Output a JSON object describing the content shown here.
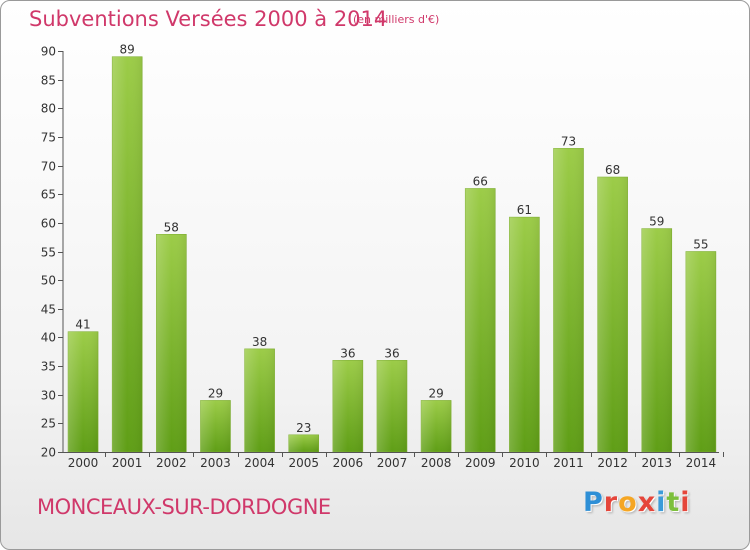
{
  "header": {
    "title": "Subventions Versées 2000 à 2014",
    "subtitle": "(en milliers d'€)"
  },
  "footer": {
    "commune": "MONCEAUX-SUR-DORDOGNE",
    "logo": {
      "text": "Proxiti",
      "letter_colors": [
        "#2e8fd6",
        "#e5453a",
        "#f5a623",
        "#e5453a",
        "#3b9bd9",
        "#7cbf3c",
        "#e5453a"
      ]
    }
  },
  "colors": {
    "bar_light": "#9ccc48",
    "bar_dark": "#5f9e16",
    "axis": "#555555",
    "text": "#333333",
    "accent": "#d0386a"
  },
  "chart_data": {
    "type": "bar",
    "title": "Subventions Versées 2000 à 2014",
    "subtitle": "(en milliers d'€)",
    "categories": [
      "2000",
      "2001",
      "2002",
      "2003",
      "2004",
      "2005",
      "2006",
      "2007",
      "2008",
      "2009",
      "2010",
      "2011",
      "2012",
      "2013",
      "2014"
    ],
    "values": [
      41,
      89,
      58,
      29,
      38,
      23,
      36,
      36,
      29,
      66,
      61,
      73,
      68,
      59,
      55
    ],
    "ylim": [
      20,
      90
    ],
    "yticks": [
      20,
      25,
      30,
      35,
      40,
      45,
      50,
      55,
      60,
      65,
      70,
      75,
      80,
      85,
      90
    ],
    "xlabel": "",
    "ylabel": "",
    "grid": false,
    "data_labels": true
  }
}
